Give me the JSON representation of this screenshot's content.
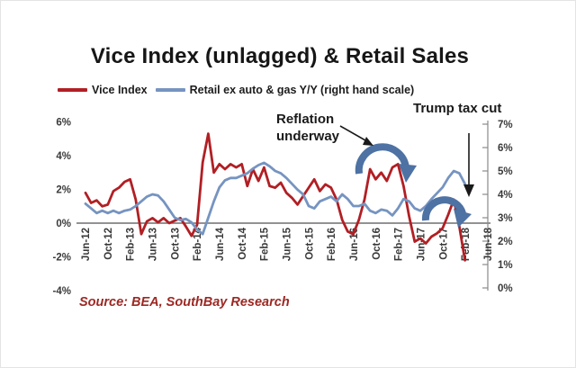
{
  "title": "Vice Index (unlagged) & Retail Sales",
  "legend": [
    {
      "label": "Vice Index",
      "color": "#b11f24"
    },
    {
      "label": "Retail ex auto & gas Y/Y (right hand scale)",
      "color": "#7694c1"
    }
  ],
  "annotations": {
    "reflation": {
      "line1": "Reflation",
      "line2": "underway"
    },
    "trump": {
      "label": "Trump tax cut"
    },
    "arc_color": "#4d72a3",
    "arrow_color": "#1a1a1a"
  },
  "source": "Source: BEA, SouthBay Research",
  "chart_data": {
    "type": "line",
    "title": "Vice Index (unlagged) & Retail Sales",
    "x_start": "Jun-12",
    "x_end": "Feb-18",
    "x_interval": "monthly",
    "x_tick_labels": [
      "Jun-12",
      "Oct-12",
      "Feb-13",
      "Jun-13",
      "Oct-13",
      "Feb-14",
      "Jun-14",
      "Oct-14",
      "Feb-15",
      "Jun-15",
      "Oct-15",
      "Feb-16",
      "Jun-16",
      "Oct-16",
      "Feb-17",
      "Jun-17",
      "Oct-17",
      "Feb-18",
      "Jun-18"
    ],
    "left_axis": {
      "ticks": [
        "6%",
        "4%",
        "2%",
        "0%",
        "-2%",
        "-4%"
      ],
      "tick_values": [
        6,
        4,
        2,
        0,
        -2,
        -4
      ],
      "range": [
        -4,
        6
      ]
    },
    "right_axis": {
      "ticks": [
        "7%",
        "6%",
        "5%",
        "4%",
        "3%",
        "2%",
        "1%",
        "0%"
      ],
      "tick_values": [
        7,
        6,
        5,
        4,
        3,
        2,
        1,
        0
      ],
      "range": [
        0,
        7
      ]
    },
    "grid": "zero-line-only",
    "legend_position": "top-left",
    "series": [
      {
        "name": "Vice Index",
        "axis": "left",
        "color": "#b11f24",
        "values": [
          1.8,
          1.2,
          1.35,
          1.0,
          1.1,
          1.9,
          2.1,
          2.45,
          2.6,
          1.4,
          -0.65,
          0.1,
          0.3,
          0.05,
          0.3,
          0.0,
          0.15,
          0.3,
          -0.2,
          -0.75,
          -0.1,
          3.6,
          5.3,
          3.0,
          3.5,
          3.2,
          3.5,
          3.3,
          3.5,
          2.2,
          3.2,
          2.5,
          3.3,
          2.2,
          2.1,
          2.4,
          1.8,
          1.5,
          1.1,
          1.6,
          2.1,
          2.6,
          1.9,
          2.3,
          2.1,
          1.4,
          0.2,
          -0.5,
          -0.65,
          0.2,
          1.4,
          3.2,
          2.6,
          3.0,
          2.5,
          3.3,
          3.5,
          2.2,
          0.4,
          -1.1,
          -0.9,
          -1.2,
          -0.8,
          -0.6,
          -0.3,
          0.5,
          1.4,
          -0.2,
          -2.2
        ]
      },
      {
        "name": "Retail ex auto & gas Y/Y",
        "axis": "right",
        "color": "#7694c1",
        "values": [
          3.6,
          3.4,
          3.2,
          3.3,
          3.2,
          3.3,
          3.2,
          3.3,
          3.35,
          3.5,
          3.7,
          3.9,
          4.0,
          3.95,
          3.7,
          3.35,
          3.0,
          2.9,
          2.95,
          2.8,
          2.5,
          2.3,
          3.0,
          3.7,
          4.3,
          4.6,
          4.7,
          4.7,
          4.8,
          4.9,
          5.1,
          5.25,
          5.35,
          5.2,
          5.0,
          4.9,
          4.7,
          4.45,
          4.2,
          4.0,
          3.5,
          3.4,
          3.7,
          3.8,
          3.9,
          3.7,
          4.0,
          3.8,
          3.5,
          3.5,
          3.6,
          3.3,
          3.2,
          3.35,
          3.3,
          3.1,
          3.4,
          3.8,
          3.7,
          3.4,
          3.3,
          3.5,
          3.8,
          4.05,
          4.3,
          4.7,
          5.0,
          4.9,
          4.45
        ]
      }
    ]
  }
}
